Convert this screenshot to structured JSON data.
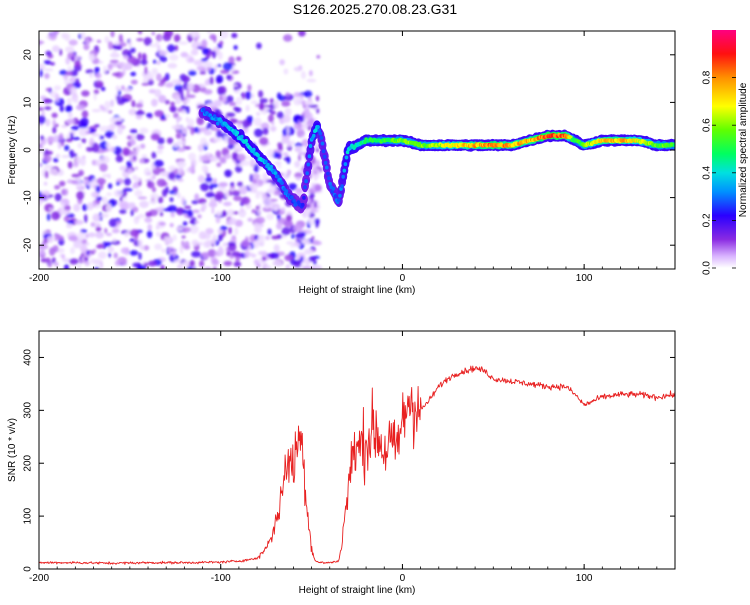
{
  "title": "S126.2025.270.08.23.G31",
  "chart_data": [
    {
      "type": "heatmap",
      "name": "spectrogram",
      "xlabel": "Height of straight line (km)",
      "ylabel": "Frequency (Hz)",
      "xlim": [
        -200,
        150
      ],
      "ylim": [
        -25,
        25
      ],
      "xticks": [
        -200,
        -100,
        0,
        100
      ],
      "yticks": [
        -20,
        -10,
        0,
        10,
        20
      ],
      "colorbar": {
        "label": "Normalized spectral amplitude",
        "range": [
          0.0,
          1.0
        ],
        "ticks": [
          0.0,
          0.2,
          0.4,
          0.6,
          0.8
        ]
      },
      "ridge": {
        "x": [
          -110,
          -100,
          -90,
          -80,
          -70,
          -62,
          -55,
          -50,
          -47,
          -45,
          -40,
          -35,
          -30,
          -25,
          -20,
          -10,
          0,
          10,
          20,
          30,
          40,
          50,
          60,
          70,
          80,
          90,
          95,
          100,
          110,
          120,
          130,
          140,
          150
        ],
        "y": [
          8,
          6,
          3,
          -1,
          -5,
          -10,
          -12,
          2,
          5,
          3,
          -7,
          -11,
          0,
          1,
          2,
          2,
          2,
          1,
          1,
          1,
          1,
          1,
          1,
          2,
          3,
          3,
          2,
          1,
          2,
          2,
          2,
          1,
          1
        ],
        "amplitude": [
          0.3,
          0.35,
          0.4,
          0.4,
          0.35,
          0.3,
          0.25,
          0.35,
          0.4,
          0.3,
          0.3,
          0.3,
          0.4,
          0.45,
          0.5,
          0.55,
          0.6,
          0.6,
          0.65,
          0.75,
          0.8,
          0.85,
          0.8,
          0.8,
          0.9,
          0.85,
          0.5,
          0.6,
          0.8,
          0.8,
          0.7,
          0.6,
          0.55
        ]
      }
    },
    {
      "type": "line",
      "name": "snr",
      "xlabel": "Height of straight line (km)",
      "ylabel": "SNR (10 * v/v)",
      "xlim": [
        -200,
        150
      ],
      "ylim": [
        0,
        450
      ],
      "xticks": [
        -200,
        -100,
        0,
        100
      ],
      "yticks": [
        0,
        100,
        200,
        300,
        400
      ],
      "color": "#e82020",
      "series": [
        {
          "name": "SNR",
          "x": [
            -200,
            -180,
            -160,
            -140,
            -120,
            -100,
            -90,
            -80,
            -75,
            -70,
            -66,
            -63,
            -60,
            -58,
            -55,
            -52,
            -50,
            -48,
            -45,
            -40,
            -35,
            -33,
            -30,
            -27,
            -24,
            -20,
            -17,
            -14,
            -10,
            -7,
            -4,
            -2,
            0,
            3,
            6,
            10,
            15,
            20,
            25,
            30,
            35,
            40,
            45,
            50,
            60,
            70,
            80,
            90,
            95,
            100,
            110,
            120,
            130,
            140,
            150
          ],
          "y": [
            12,
            12,
            11,
            12,
            12,
            13,
            15,
            20,
            40,
            80,
            150,
            220,
            180,
            250,
            230,
            100,
            40,
            15,
            12,
            12,
            15,
            60,
            150,
            220,
            230,
            240,
            260,
            260,
            220,
            240,
            220,
            250,
            270,
            320,
            320,
            300,
            320,
            345,
            360,
            370,
            375,
            380,
            375,
            360,
            355,
            350,
            345,
            345,
            330,
            310,
            325,
            330,
            330,
            325,
            330
          ]
        }
      ]
    }
  ]
}
